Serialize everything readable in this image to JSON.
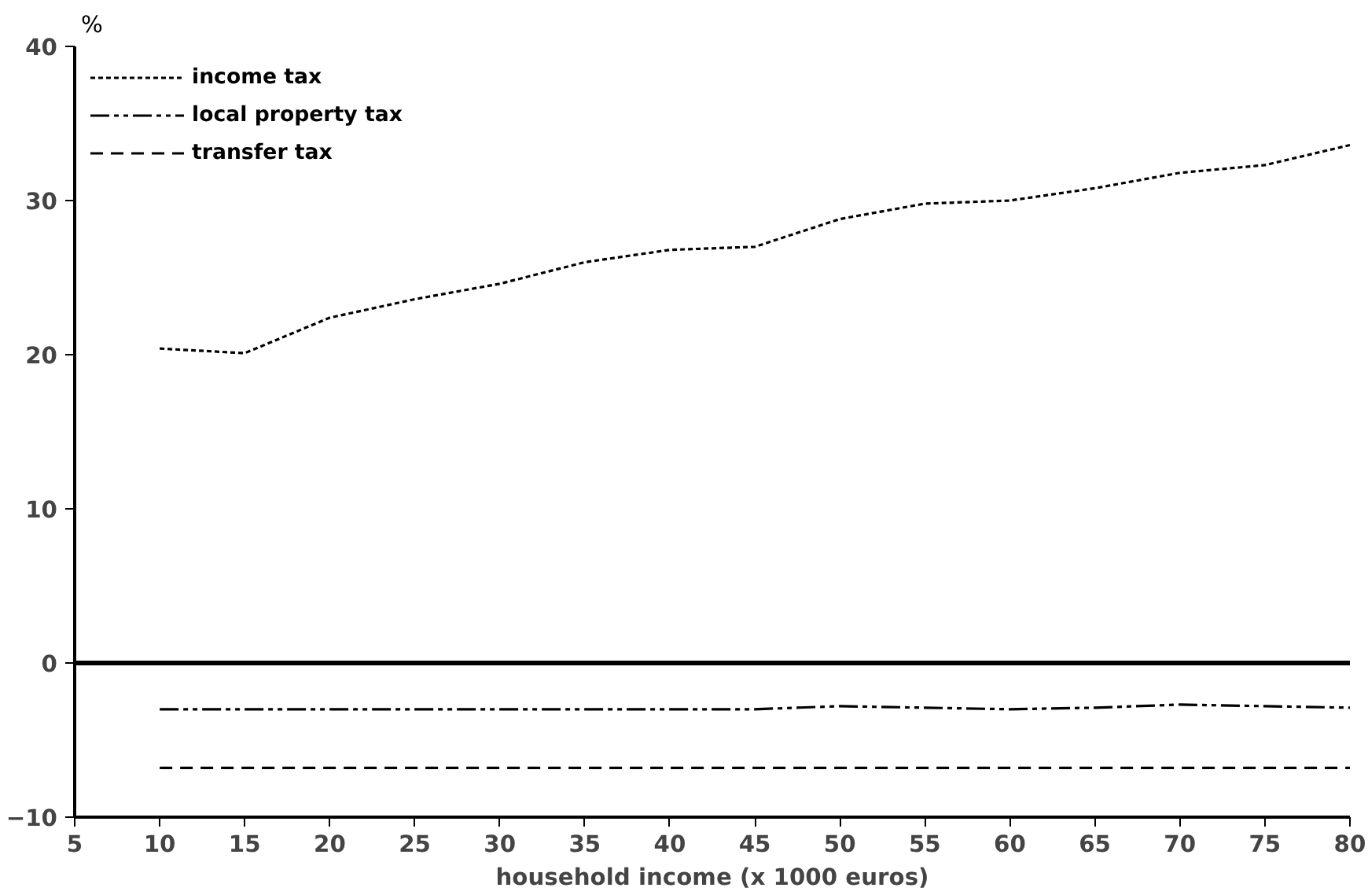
{
  "chart_data": {
    "type": "line",
    "xlabel": "household income (x 1000 euros)",
    "ylabel": "%",
    "x": [
      10,
      15,
      20,
      25,
      30,
      35,
      40,
      45,
      50,
      55,
      60,
      65,
      70,
      75,
      80
    ],
    "series": [
      {
        "name": "income tax",
        "color": "#000000",
        "line_style": "dotted",
        "values": [
          20.4,
          20.1,
          22.4,
          23.6,
          24.6,
          26.0,
          26.8,
          27.0,
          28.8,
          29.8,
          30.0,
          30.8,
          31.8,
          32.3,
          33.6
        ]
      },
      {
        "name": "local property tax",
        "color": "#000000",
        "line_style": "dashdot",
        "values": [
          -3.0,
          -3.0,
          -3.0,
          -3.0,
          -3.0,
          -3.0,
          -3.0,
          -3.0,
          -2.8,
          -2.9,
          -3.0,
          -2.9,
          -2.7,
          -2.8,
          -2.9
        ]
      },
      {
        "name": "transfer tax",
        "color": "#000000",
        "line_style": "dashed",
        "values": [
          -6.8,
          -6.8,
          -6.8,
          -6.8,
          -6.8,
          -6.8,
          -6.8,
          -6.8,
          -6.8,
          -6.8,
          -6.8,
          -6.8,
          -6.8,
          -6.8,
          -6.8
        ]
      }
    ],
    "xlim": [
      5,
      80
    ],
    "xticks": [
      5,
      10,
      15,
      20,
      25,
      30,
      35,
      40,
      45,
      50,
      55,
      60,
      65,
      70,
      75,
      80
    ],
    "ylim": [
      -10,
      40
    ],
    "yticks": [
      -10,
      0,
      10,
      20,
      30,
      40
    ],
    "ref_lines": [
      {
        "axis": "y",
        "value": 0,
        "color": "#000000",
        "line_style": "solid"
      }
    ],
    "grid": false,
    "legend": "top left"
  }
}
